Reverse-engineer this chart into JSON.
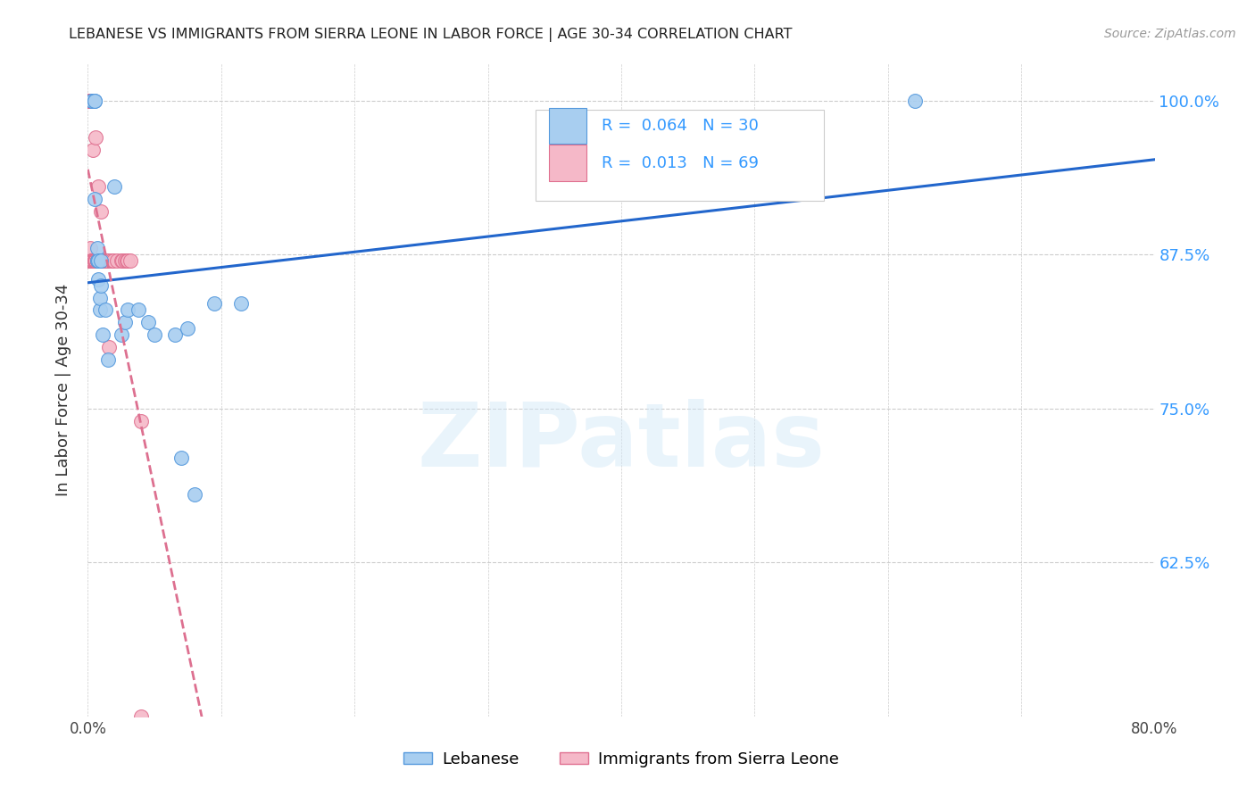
{
  "title": "LEBANESE VS IMMIGRANTS FROM SIERRA LEONE IN LABOR FORCE | AGE 30-34 CORRELATION CHART",
  "source": "Source: ZipAtlas.com",
  "ylabel": "In Labor Force | Age 30-34",
  "legend_label_blue": "Lebanese",
  "legend_label_pink": "Immigrants from Sierra Leone",
  "R_blue": 0.064,
  "N_blue": 30,
  "R_pink": 0.013,
  "N_pink": 69,
  "xlim": [
    0.0,
    0.8
  ],
  "ylim": [
    0.5,
    1.03
  ],
  "yticks": [
    0.625,
    0.75,
    0.875,
    1.0
  ],
  "ytick_labels": [
    "62.5%",
    "75.0%",
    "87.5%",
    "100.0%"
  ],
  "xticks": [
    0.0,
    0.1,
    0.2,
    0.3,
    0.4,
    0.5,
    0.6,
    0.7,
    0.8
  ],
  "blue_color": "#a8cef0",
  "blue_edge": "#5599dd",
  "pink_color": "#f5b8c8",
  "pink_edge": "#e07090",
  "trend_blue": "#2266cc",
  "trend_pink": "#dd7090",
  "blue_scatter_x": [
    0.003,
    0.003,
    0.005,
    0.005,
    0.005,
    0.007,
    0.007,
    0.008,
    0.008,
    0.009,
    0.009,
    0.01,
    0.01,
    0.011,
    0.013,
    0.015,
    0.02,
    0.025,
    0.028,
    0.03,
    0.038,
    0.045,
    0.05,
    0.065,
    0.07,
    0.075,
    0.08,
    0.095,
    0.115,
    0.62
  ],
  "blue_scatter_y": [
    1.0,
    1.0,
    1.0,
    1.0,
    0.92,
    0.87,
    0.88,
    0.87,
    0.855,
    0.83,
    0.84,
    0.87,
    0.85,
    0.81,
    0.83,
    0.79,
    0.93,
    0.81,
    0.82,
    0.83,
    0.83,
    0.82,
    0.81,
    0.81,
    0.71,
    0.815,
    0.68,
    0.835,
    0.835,
    1.0
  ],
  "pink_scatter_x": [
    0.001,
    0.001,
    0.001,
    0.001,
    0.001,
    0.001,
    0.001,
    0.001,
    0.001,
    0.001,
    0.002,
    0.002,
    0.002,
    0.002,
    0.002,
    0.002,
    0.002,
    0.002,
    0.002,
    0.003,
    0.003,
    0.003,
    0.003,
    0.003,
    0.003,
    0.004,
    0.004,
    0.004,
    0.004,
    0.004,
    0.004,
    0.005,
    0.005,
    0.005,
    0.005,
    0.005,
    0.006,
    0.006,
    0.006,
    0.006,
    0.007,
    0.007,
    0.007,
    0.007,
    0.008,
    0.008,
    0.008,
    0.009,
    0.009,
    0.01,
    0.01,
    0.011,
    0.012,
    0.012,
    0.013,
    0.014,
    0.015,
    0.016,
    0.018,
    0.019,
    0.022,
    0.025,
    0.026,
    0.028,
    0.029,
    0.03,
    0.032,
    0.04,
    0.04
  ],
  "pink_scatter_y": [
    1.0,
    1.0,
    1.0,
    1.0,
    1.0,
    1.0,
    1.0,
    1.0,
    1.0,
    0.87,
    1.0,
    1.0,
    1.0,
    1.0,
    1.0,
    0.87,
    0.87,
    0.87,
    0.88,
    1.0,
    1.0,
    0.87,
    0.87,
    0.87,
    0.87,
    1.0,
    0.96,
    0.87,
    0.87,
    0.87,
    0.87,
    0.87,
    0.87,
    0.87,
    0.87,
    0.87,
    0.97,
    0.87,
    0.87,
    0.87,
    0.87,
    0.87,
    0.87,
    0.87,
    0.93,
    0.87,
    0.87,
    0.87,
    0.87,
    0.91,
    0.87,
    0.87,
    0.87,
    0.87,
    0.87,
    0.87,
    0.87,
    0.8,
    0.87,
    0.87,
    0.87,
    0.87,
    0.87,
    0.87,
    0.87,
    0.87,
    0.87,
    0.74,
    0.5
  ],
  "watermark": "ZIPatlas",
  "background_color": "#ffffff",
  "grid_color": "#cccccc"
}
